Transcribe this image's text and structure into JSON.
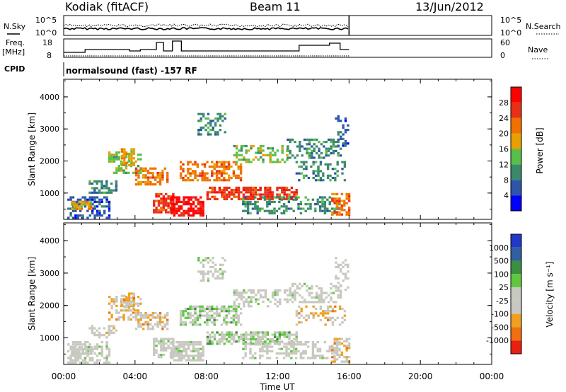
{
  "header": {
    "station": "Kodiak (fitACF)",
    "beam": "Beam 11",
    "date": "13/Jun/2012"
  },
  "left_labels": {
    "nsky": "N.Sky",
    "freq_top": "Freq.",
    "freq_bottom": "[MHz]",
    "cpid": "CPID"
  },
  "right_labels": {
    "nsearch": "N.Search",
    "nave": "Nave"
  },
  "ticks": {
    "nsky_top": "10^5",
    "nsky_bottom": "10^0",
    "freq_top": "18",
    "freq_bottom": "8",
    "nave_top": "60",
    "nave_bottom": "0"
  },
  "cpid_text": "normalsound (fast) -157 RF",
  "chart_data": [
    {
      "type": "heatmap",
      "name": "power",
      "ylabel": "Slant Range [km]",
      "ylim": [
        180,
        4550
      ],
      "yticks": [
        "1000",
        "2000",
        "3000",
        "4000"
      ],
      "colorbar": {
        "label": "Power [dB]",
        "ticks": [
          "4",
          "8",
          "12",
          "16",
          "20",
          "24",
          "28"
        ],
        "colors": [
          "#0000ff",
          "#2d55a8",
          "#3a8a6a",
          "#58c048",
          "#e8a000",
          "#f07000",
          "#e83018",
          "#ff0000"
        ]
      }
    },
    {
      "type": "heatmap",
      "name": "velocity",
      "ylabel": "Slant Range [km]",
      "ylim": [
        180,
        4550
      ],
      "yticks": [
        "1000",
        "2000",
        "3000",
        "4000"
      ],
      "xlabel": "Time UT",
      "xticks": [
        "00:00",
        "04:00",
        "08:00",
        "12:00",
        "16:00",
        "20:00",
        "00:00"
      ],
      "data_end": "16:00",
      "colorbar": {
        "label": "Velocity [m s⁻¹]",
        "ticks": [
          "1000",
          "500",
          "100",
          "25",
          "-25",
          "-100",
          "-500",
          "-1000"
        ],
        "colors": [
          "#2238c8",
          "#3060a0",
          "#3a9040",
          "#60c840",
          "#c8c8c0",
          "#c8c8c0",
          "#f0a020",
          "#f07010",
          "#e82010"
        ]
      }
    }
  ]
}
